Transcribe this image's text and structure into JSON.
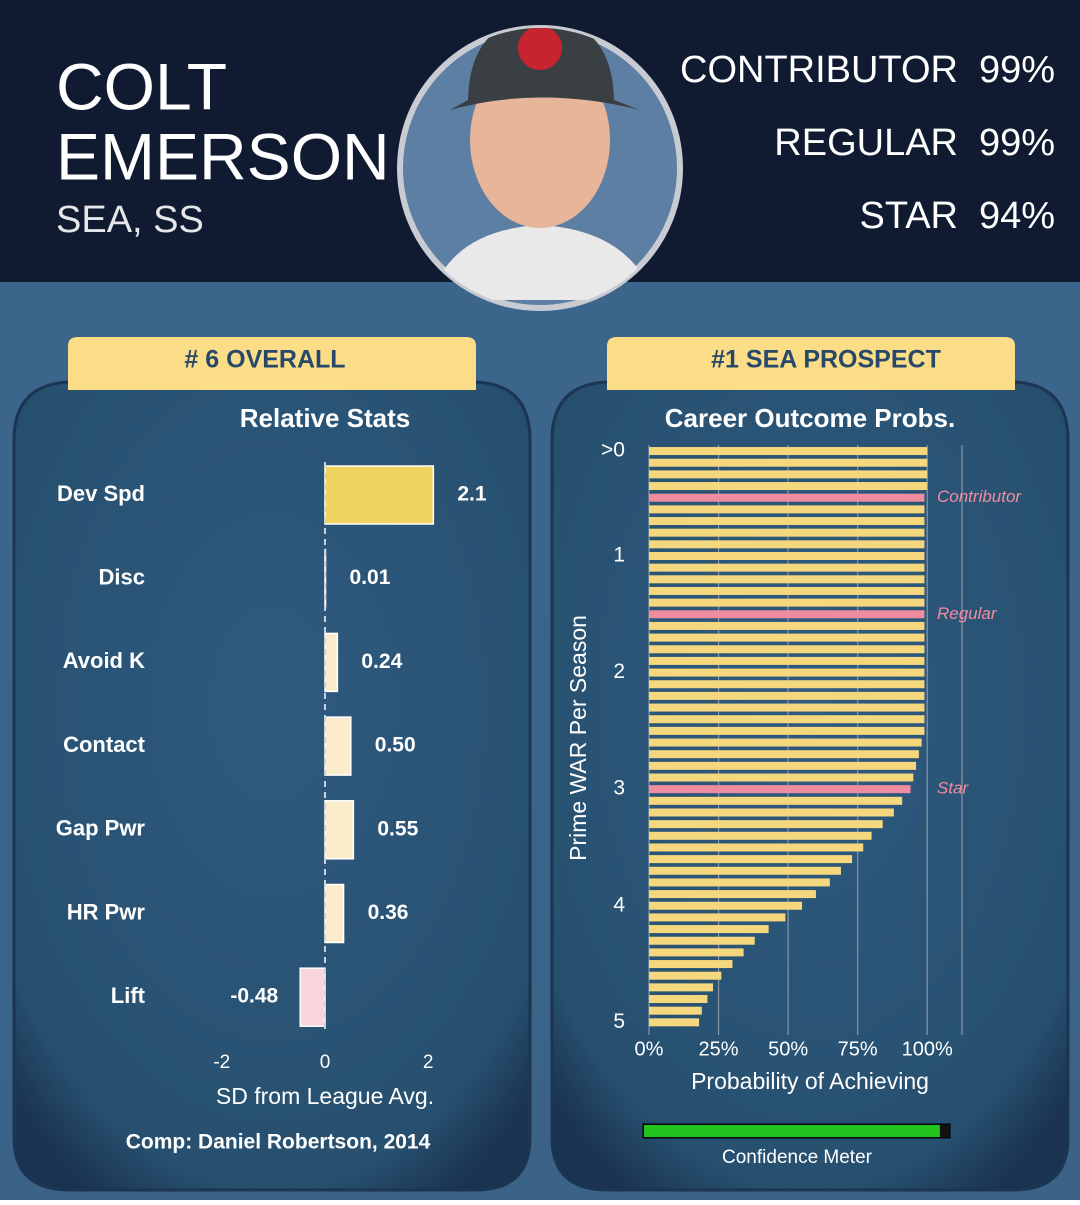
{
  "header": {
    "first_name": "COLT",
    "last_name": "EMERSON",
    "team_position": "SEA, SS",
    "outcomes": [
      {
        "label": "CONTRIBUTOR",
        "value": "99%"
      },
      {
        "label": "REGULAR",
        "value": "99%"
      },
      {
        "label": "STAR",
        "value": "94%"
      }
    ]
  },
  "left_badge": "# 6 OVERALL",
  "right_badge": "#1 SEA PROSPECT",
  "comp": "Comp: Daniel Robertson, 2014",
  "confidence": {
    "label": "Confidence Meter",
    "value": 97
  },
  "chart_data": [
    {
      "type": "hbar",
      "title": "Relative Stats",
      "categories": [
        "Dev Spd",
        "Disc",
        "Avoid K",
        "Contact",
        "Gap Pwr",
        "HR Pwr",
        "Lift"
      ],
      "values": [
        2.1,
        0.01,
        0.24,
        0.5,
        0.55,
        0.36,
        -0.48
      ],
      "value_labels": [
        "2.1",
        "0.01",
        "0.24",
        "0.50",
        "0.55",
        "0.36",
        "-0.48"
      ],
      "colors": [
        "#f0d462",
        "#fbeccc",
        "#fbeccc",
        "#fbeccc",
        "#fbeccc",
        "#fbeccc",
        "#f8d6dc"
      ],
      "xlim": [
        -2.5,
        2.5
      ],
      "xticks": [
        -2,
        0,
        2
      ],
      "xlabel": "SD from League Avg."
    },
    {
      "type": "prob",
      "title": "Career Outcome Probs.",
      "y": [
        0.1,
        0.2,
        0.3,
        0.4,
        0.5,
        0.6,
        0.7,
        0.8,
        0.9,
        1.0,
        1.1,
        1.2,
        1.3,
        1.4,
        1.5,
        1.6,
        1.7,
        1.8,
        1.9,
        2.0,
        2.1,
        2.2,
        2.3,
        2.4,
        2.5,
        2.6,
        2.7,
        2.8,
        2.9,
        3.0,
        3.1,
        3.2,
        3.3,
        3.4,
        3.5,
        3.6,
        3.7,
        3.8,
        3.9,
        4.0,
        4.1,
        4.2,
        4.3,
        4.4,
        4.5,
        4.6,
        4.7,
        4.8,
        4.9,
        5.0
      ],
      "values": [
        100,
        100,
        100,
        100,
        99,
        99,
        99,
        99,
        99,
        99,
        99,
        99,
        99,
        99,
        99,
        99,
        99,
        99,
        99,
        99,
        99,
        99,
        99,
        99,
        99,
        98,
        97,
        96,
        95,
        94,
        91,
        88,
        84,
        80,
        77,
        73,
        69,
        65,
        60,
        55,
        49,
        43,
        38,
        34,
        30,
        26,
        23,
        21,
        19,
        18
      ],
      "color": "#f5d77e",
      "highlight_color": "#f08ca0",
      "annotations": [
        {
          "text": "Contributor",
          "y": 0.5
        },
        {
          "text": "Regular",
          "y": 1.5
        },
        {
          "text": "Star",
          "y": 3.0
        }
      ],
      "ylim": [
        0,
        5.1
      ],
      "yticks": [
        {
          "value": 0.1,
          "label": ">0"
        },
        1,
        2,
        3,
        4,
        5
      ],
      "xlim": [
        0,
        112.5
      ],
      "xticks": [
        {
          "value": 0,
          "label": "0%"
        },
        {
          "value": 25,
          "label": "25%"
        },
        {
          "value": 50,
          "label": "50%"
        },
        {
          "value": 75,
          "label": "75%"
        },
        {
          "value": 100,
          "label": "100%"
        }
      ],
      "grid": true,
      "xlabel": "Probability of Achieving",
      "ylabel": "Prime WAR Per Season"
    }
  ]
}
